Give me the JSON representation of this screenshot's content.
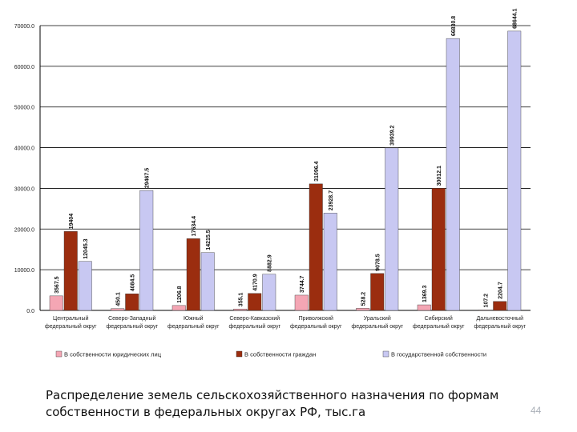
{
  "chart_data": {
    "type": "bar",
    "title": "",
    "xlabel": "",
    "ylabel": "",
    "ylim": [
      0,
      70000
    ],
    "yticks": [
      "0.0",
      "10000.0",
      "20000.0",
      "30000.0",
      "40000.0",
      "50000.0",
      "60000.0",
      "70000.0"
    ],
    "grid": true,
    "legend_position": "bottom",
    "categories": [
      [
        "Центральный",
        "федеральный округ"
      ],
      [
        "Северо-Западный",
        "федеральный округ"
      ],
      [
        "Южный",
        "федеральный округ"
      ],
      [
        "Северо-Кавказский",
        "федеральный округ"
      ],
      [
        "Приволжский",
        "федеральный округ"
      ],
      [
        "Уральский",
        "федеральный округ"
      ],
      [
        "Сибирский",
        "федеральный округ"
      ],
      [
        "Дальневосточный",
        "федеральный округ"
      ]
    ],
    "series": [
      {
        "name": "В собственности юридических лиц",
        "color": "#f4a6b4",
        "values": [
          3567.5,
          450.1,
          1206.8,
          355.1,
          3744.7,
          528.2,
          1369.3,
          107.2
        ],
        "labels": [
          "3567.5",
          "450.1",
          "1206.8",
          "355.1",
          "3744.7",
          "528.2",
          "1369.3",
          "107.2"
        ]
      },
      {
        "name": "В собственности граждан",
        "color": "#9b2d0f",
        "values": [
          19404,
          4084.5,
          17634.4,
          4170.9,
          31096.4,
          9078.5,
          30012.1,
          2204.7
        ],
        "labels": [
          "19404",
          "4084.5",
          "17634.4",
          "4170.9",
          "31096.4",
          "9078.5",
          "30012.1",
          "2204.7"
        ]
      },
      {
        "name": "В государственной собственности",
        "color": "#c8c8f2",
        "values": [
          12045.3,
          29467.5,
          14215.5,
          8882.9,
          23928.7,
          39939.2,
          66830.8,
          68644.1
        ],
        "labels": [
          "12045.3",
          "29467.5",
          "14215.5",
          "8882.9",
          "23928.7",
          "39939.2",
          "66830.8",
          "68644.1"
        ]
      }
    ]
  },
  "caption": {
    "line1": "Распределение земель сельскохозяйственного назначения по формам",
    "line2": "собственности в федеральных округах РФ, тыс.га"
  },
  "page_number": "44"
}
